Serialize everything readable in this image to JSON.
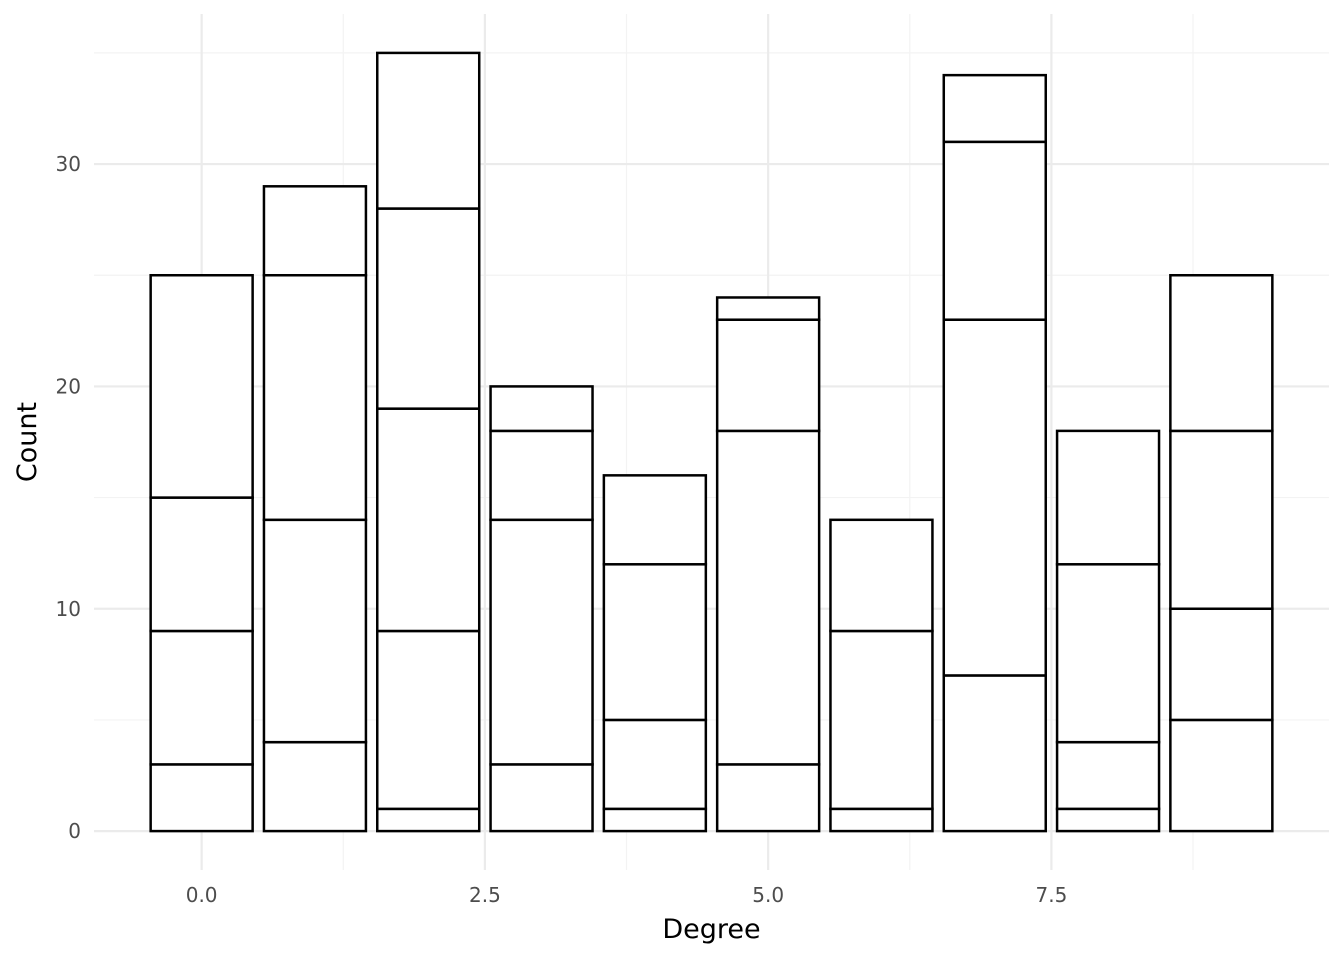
{
  "chart_data": {
    "type": "bar",
    "stacked": true,
    "xlabel": "Degree",
    "ylabel": "Count",
    "x": [
      0,
      1,
      2,
      3,
      4,
      5,
      6,
      7,
      8,
      9
    ],
    "segment_boundaries": [
      [
        3,
        9,
        15,
        25
      ],
      [
        4,
        14,
        25,
        29
      ],
      [
        1,
        9,
        19,
        28,
        35
      ],
      [
        3,
        14,
        18,
        20
      ],
      [
        1,
        5,
        12,
        16
      ],
      [
        3,
        18,
        23,
        24
      ],
      [
        1,
        9,
        14
      ],
      [
        7,
        23,
        31,
        34
      ],
      [
        1,
        4,
        12,
        18
      ],
      [
        5,
        10,
        18,
        25
      ]
    ],
    "totals": [
      25,
      29,
      35,
      20,
      16,
      24,
      14,
      34,
      18,
      25
    ],
    "xlim": [
      -0.95,
      9.95
    ],
    "ylim": [
      -1.75,
      36.75
    ],
    "x_major_ticks": [
      0,
      2.5,
      5,
      7.5
    ],
    "x_tick_labels": [
      "0.0",
      "2.5",
      "5.0",
      "7.5"
    ],
    "x_minor_ticks": [
      1.25,
      3.75,
      6.25,
      8.75
    ],
    "y_major_ticks": [
      0,
      10,
      20,
      30
    ],
    "y_tick_labels": [
      "0",
      "10",
      "20",
      "30"
    ],
    "y_minor_ticks": [
      5,
      15,
      25,
      35
    ],
    "bar_width": 0.9,
    "grid": true,
    "legend": "none",
    "colors": {
      "bar_fill": "#ffffff",
      "bar_stroke": "#000000",
      "grid_major": "#ebebeb",
      "grid_minor": "#f3f3f3",
      "tick_text": "#4d4d4d",
      "title_text": "#000000"
    }
  }
}
